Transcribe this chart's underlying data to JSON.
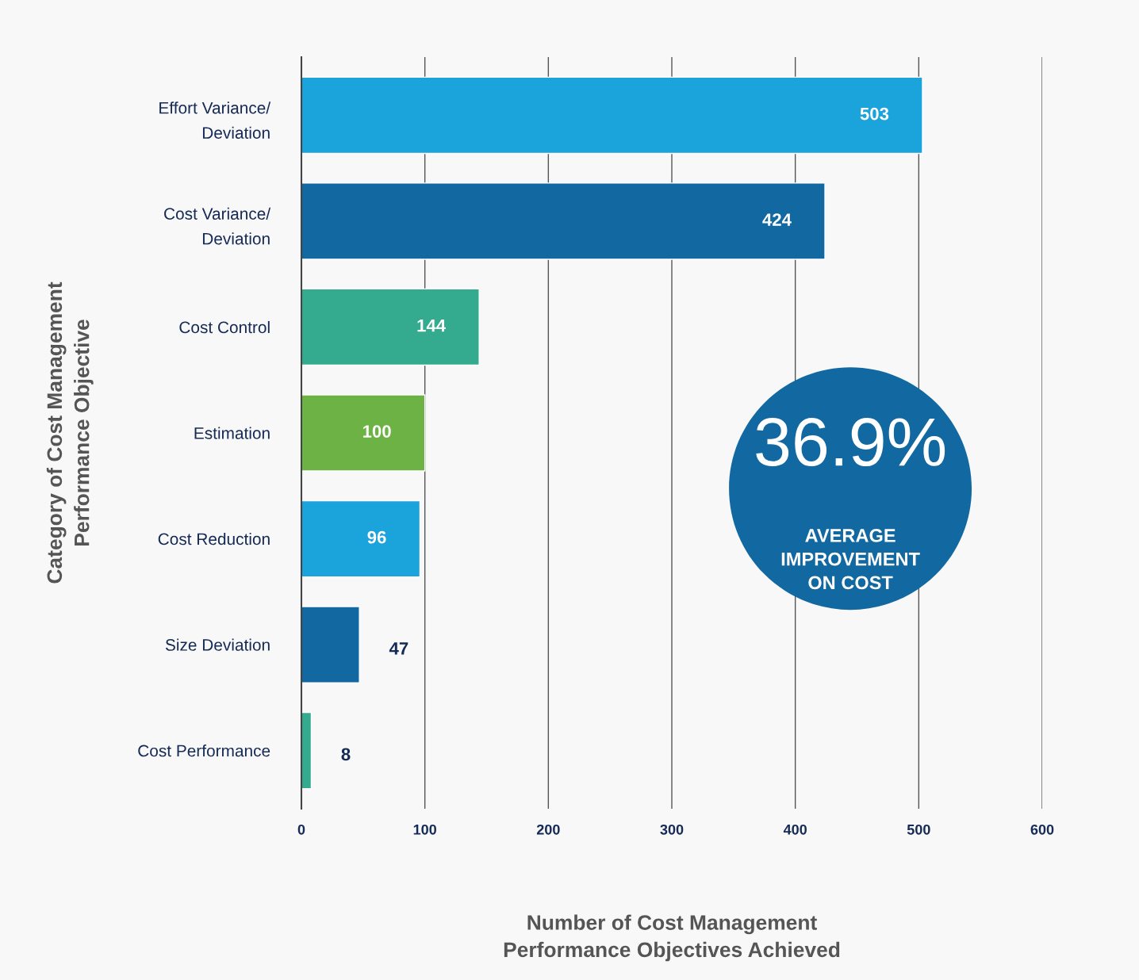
{
  "chart_data": {
    "type": "bar",
    "orientation": "horizontal",
    "categories": [
      "Effort Variance/\nDeviation",
      "Cost Variance/\nDeviation",
      "Cost Control",
      "Estimation",
      "Cost Reduction",
      "Size Deviation",
      "Cost Performance"
    ],
    "values": [
      503,
      424,
      144,
      100,
      96,
      47,
      8
    ],
    "colors": [
      "#1ba3dc",
      "#1269a2",
      "#34aa8e",
      "#6db245",
      "#1ba3dc",
      "#1269a2",
      "#34aa8e"
    ],
    "data_labels": true,
    "xlim": [
      0,
      600
    ],
    "xticks": [
      0,
      100,
      200,
      300,
      400,
      500,
      600
    ],
    "grid": "x",
    "xlabel": "Number of Cost Management\nPerformance Objectives Achieved",
    "ylabel": "Category of Cost Management\nPerformance Objective",
    "annotations": [
      "36.9%",
      "AVERAGE\nIMPROVEMENT\nON COST"
    ]
  }
}
